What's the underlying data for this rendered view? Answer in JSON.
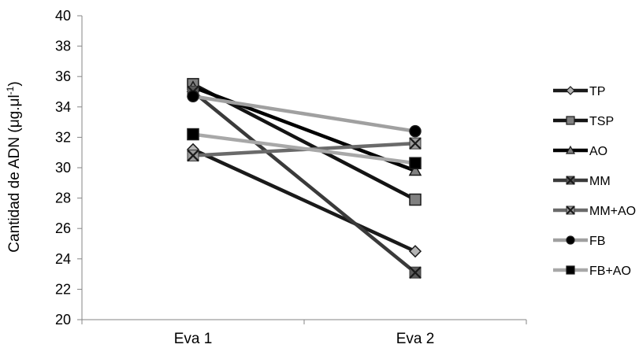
{
  "chart_data": {
    "type": "line",
    "categories": [
      "Eva 1",
      "Eva 2"
    ],
    "ylabel": "Cantidad de ADN (μg.μl",
    "ylabel_superscript": "-1",
    "ylabel_suffix": ")",
    "ylim": [
      20,
      40
    ],
    "yticks": [
      "20",
      "22",
      "24",
      "26",
      "28",
      "30",
      "32",
      "34",
      "36",
      "38",
      "40"
    ],
    "grid": false,
    "legend_position": "right",
    "series": [
      {
        "name": "TP",
        "values": [
          31.2,
          24.5
        ],
        "line_color": "#1a1a1a",
        "marker": "diamond",
        "marker_fill": "#b4b4b4"
      },
      {
        "name": "TSP",
        "values": [
          35.5,
          27.9
        ],
        "line_color": "#141414",
        "marker": "square",
        "marker_fill": "#808080"
      },
      {
        "name": "AO",
        "values": [
          35.3,
          29.8
        ],
        "line_color": "#000000",
        "marker": "triangle",
        "marker_fill": "#808080"
      },
      {
        "name": "MM",
        "values": [
          35.0,
          23.1
        ],
        "line_color": "#3a3a3a",
        "marker": "x",
        "marker_fill": "#5a5a5a"
      },
      {
        "name": "MM+AO",
        "values": [
          30.8,
          31.6
        ],
        "line_color": "#6a6a6a",
        "marker": "x",
        "marker_fill": "#9a9a9a"
      },
      {
        "name": "FB",
        "values": [
          34.7,
          32.4
        ],
        "line_color": "#a0a0a0",
        "marker": "circle",
        "marker_fill": "#000000"
      },
      {
        "name": "FB+AO",
        "values": [
          32.2,
          30.3
        ],
        "line_color": "#a8a8a8",
        "marker": "square",
        "marker_fill": "#000000"
      }
    ]
  }
}
